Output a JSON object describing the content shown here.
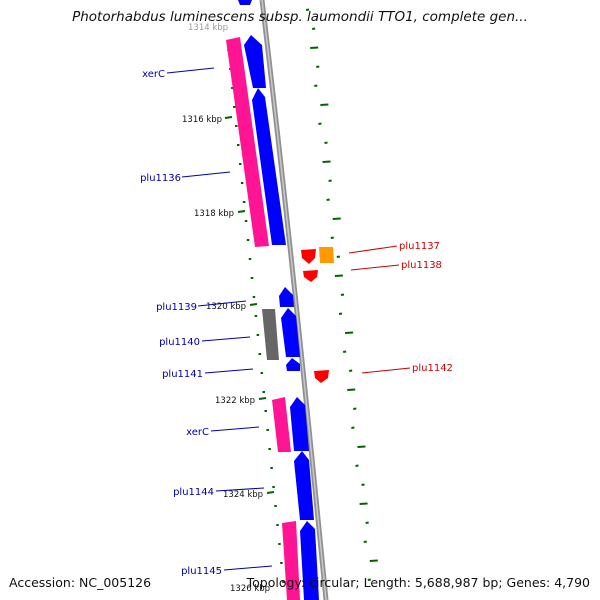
{
  "title": "Photorhabdus luminescens subsp. laumondii TTO1, complete gen...",
  "accession_text": "Accession: NC_005126",
  "summary_text": "Topology: circular; Length: 5,688,987 bp; Genes: 4,790",
  "colors": {
    "backbone": "#909090",
    "forward_cds": "#0000ff",
    "reverse_cds": "#ff1493",
    "pseudo": "#666666",
    "rna_red": "#ff0000",
    "rna_orange": "#ff9900",
    "left_label": "#0000aa",
    "right_label": "#cc0000",
    "gc_tick": "#006400"
  },
  "scale_labels": [
    "1314 kbp",
    "1316 kbp",
    "1318 kbp",
    "1320 kbp",
    "1322 kbp",
    "1324 kbp",
    "1326 kbp"
  ],
  "left_labels": [
    "xerC",
    "plu1136",
    "plu1139",
    "plu1140",
    "plu1141",
    "xerC",
    "plu1144",
    "plu1145"
  ],
  "right_labels": [
    "plu1137",
    "plu1138",
    "plu1142"
  ]
}
